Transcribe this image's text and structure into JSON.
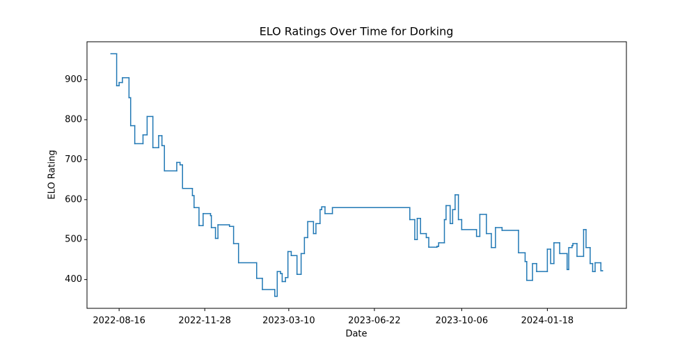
{
  "chart_data": {
    "type": "line",
    "drawstyle": "steps-post",
    "title": "ELO Ratings Over Time for Dorking",
    "x_label": "Date",
    "y_label": "ELO Rating",
    "x": [
      "2022-08-06",
      "2022-08-13",
      "2022-08-16",
      "2022-08-20",
      "2022-08-28",
      "2022-08-30",
      "2022-09-04",
      "2022-09-14",
      "2022-09-19",
      "2022-09-26",
      "2022-10-03",
      "2022-10-07",
      "2022-10-10",
      "2022-10-25",
      "2022-10-29",
      "2022-11-01",
      "2022-11-13",
      "2022-11-15",
      "2022-11-21",
      "2022-11-26",
      "2022-12-05",
      "2022-12-06",
      "2022-12-11",
      "2022-12-14",
      "2022-12-28",
      "2023-01-02",
      "2023-01-08",
      "2023-01-30",
      "2023-02-06",
      "2023-02-21",
      "2023-02-24",
      "2023-02-28",
      "2023-03-02",
      "2023-03-06",
      "2023-03-09",
      "2023-03-13",
      "2023-03-20",
      "2023-03-25",
      "2023-03-29",
      "2023-04-02",
      "2023-04-09",
      "2023-04-12",
      "2023-04-17",
      "2023-04-19",
      "2023-04-23",
      "2023-05-02",
      "2023-08-04",
      "2023-08-10",
      "2023-08-13",
      "2023-08-17",
      "2023-08-24",
      "2023-08-27",
      "2023-09-06",
      "2023-09-08",
      "2023-09-15",
      "2023-09-17",
      "2023-09-22",
      "2023-09-25",
      "2023-09-28",
      "2023-10-02",
      "2023-10-06",
      "2023-10-24",
      "2023-10-28",
      "2023-11-05",
      "2023-11-11",
      "2023-11-16",
      "2023-11-24",
      "2023-12-14",
      "2023-12-22",
      "2023-12-24",
      "2023-12-31",
      "2024-01-05",
      "2024-01-18",
      "2024-01-22",
      "2024-01-26",
      "2024-02-02",
      "2024-02-11",
      "2024-02-13",
      "2024-02-17",
      "2024-02-18",
      "2024-02-23",
      "2024-03-02",
      "2024-03-05",
      "2024-03-10",
      "2024-03-13",
      "2024-03-16",
      "2024-03-23",
      "2024-03-25"
    ],
    "series": [
      {
        "name": "Dorking",
        "color": "#1f77b4",
        "values": [
          965,
          885,
          893,
          905,
          855,
          785,
          740,
          762,
          808,
          730,
          760,
          735,
          672,
          693,
          687,
          628,
          610,
          580,
          535,
          565,
          560,
          530,
          503,
          537,
          533,
          490,
          442,
          403,
          375,
          358,
          420,
          415,
          395,
          405,
          470,
          460,
          413,
          465,
          505,
          545,
          515,
          540,
          575,
          582,
          565,
          580,
          550,
          500,
          553,
          515,
          505,
          481,
          483,
          492,
          550,
          585,
          540,
          575,
          612,
          550,
          525,
          508,
          563,
          515,
          480,
          530,
          523,
          467,
          445,
          398,
          440,
          420,
          476,
          440,
          492,
          465,
          425,
          480,
          485,
          490,
          458,
          525,
          480,
          440,
          420,
          442,
          422,
          422
        ]
      }
    ],
    "xlim": [
      "2022-07-08",
      "2024-04-23"
    ],
    "xticks": [
      "2022-08-16",
      "2022-11-28",
      "2023-03-10",
      "2023-06-22",
      "2023-10-06",
      "2024-01-18"
    ],
    "ylim": [
      328,
      995
    ],
    "yticks": [
      400,
      500,
      600,
      700,
      800,
      900
    ]
  }
}
